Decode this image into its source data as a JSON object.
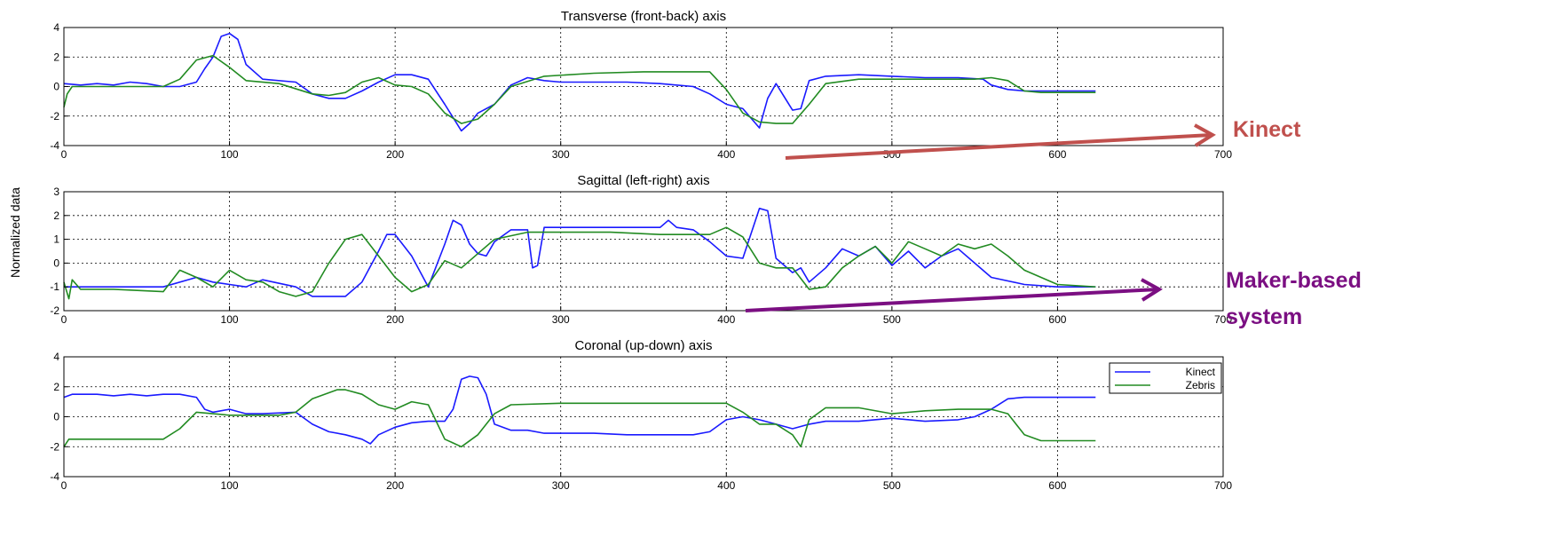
{
  "figure": {
    "ylabel": "Normalized data",
    "annotations": [
      {
        "text": "Kinect",
        "color": "#c0504d"
      },
      {
        "text": "Maker-based",
        "color": "#7b0f82"
      },
      {
        "text": "system",
        "color": "#7b0f82"
      }
    ],
    "legend": {
      "entries": [
        {
          "name": "Kinect",
          "color": "#1a1aff"
        },
        {
          "name": "Zebris",
          "color": "#228b22"
        }
      ],
      "placement": "top-right of third panel"
    }
  },
  "chart_data": [
    {
      "type": "line",
      "title": "Transverse (front-back) axis",
      "xlim": [
        0,
        700
      ],
      "ylim": [
        -4,
        4
      ],
      "xticks": [
        0,
        100,
        200,
        300,
        400,
        500,
        600,
        700
      ],
      "yticks": [
        -4,
        -2,
        0,
        2,
        4
      ],
      "grid": true,
      "series": [
        {
          "name": "Kinect",
          "color": "#1a1aff",
          "x": [
            0,
            10,
            20,
            30,
            40,
            50,
            60,
            70,
            80,
            85,
            90,
            95,
            100,
            105,
            110,
            120,
            140,
            150,
            160,
            170,
            180,
            190,
            200,
            210,
            220,
            230,
            240,
            245,
            250,
            260,
            270,
            280,
            290,
            300,
            320,
            340,
            360,
            380,
            390,
            400,
            410,
            420,
            425,
            430,
            440,
            445,
            450,
            460,
            480,
            500,
            520,
            540,
            555,
            560,
            570,
            580,
            590,
            600,
            623
          ],
          "y": [
            0.2,
            0.1,
            0.2,
            0.1,
            0.3,
            0.2,
            0.0,
            0.0,
            0.3,
            1.2,
            2.0,
            3.4,
            3.6,
            3.2,
            1.5,
            0.5,
            0.3,
            -0.5,
            -0.8,
            -0.8,
            -0.3,
            0.3,
            0.8,
            0.8,
            0.5,
            -1.2,
            -3.0,
            -2.5,
            -1.8,
            -1.2,
            0.1,
            0.6,
            0.4,
            0.3,
            0.3,
            0.3,
            0.2,
            0.0,
            -0.5,
            -1.2,
            -1.5,
            -2.8,
            -0.8,
            0.2,
            -1.6,
            -1.5,
            0.4,
            0.7,
            0.8,
            0.7,
            0.6,
            0.6,
            0.5,
            0.1,
            -0.2,
            -0.3,
            -0.3,
            -0.3,
            -0.3
          ]
        },
        {
          "name": "Zebris",
          "color": "#228b22",
          "x": [
            0,
            2,
            5,
            10,
            30,
            60,
            70,
            80,
            90,
            100,
            110,
            130,
            150,
            160,
            170,
            180,
            190,
            200,
            210,
            220,
            230,
            240,
            250,
            260,
            270,
            290,
            320,
            350,
            380,
            390,
            400,
            410,
            420,
            430,
            440,
            450,
            460,
            480,
            500,
            530,
            550,
            560,
            570,
            580,
            590,
            600,
            623
          ],
          "y": [
            -1.4,
            -0.5,
            0.0,
            0.0,
            0.0,
            0.0,
            0.5,
            1.8,
            2.1,
            1.3,
            0.4,
            0.2,
            -0.5,
            -0.6,
            -0.4,
            0.3,
            0.6,
            0.1,
            0.0,
            -0.5,
            -1.8,
            -2.5,
            -2.2,
            -1.2,
            0.0,
            0.7,
            0.9,
            1.0,
            1.0,
            1.0,
            -0.2,
            -1.8,
            -2.4,
            -2.5,
            -2.5,
            -1.2,
            0.2,
            0.5,
            0.5,
            0.5,
            0.5,
            0.6,
            0.4,
            -0.3,
            -0.4,
            -0.4,
            -0.4
          ]
        }
      ]
    },
    {
      "type": "line",
      "title": "Sagittal (left-right) axis",
      "xlim": [
        0,
        700
      ],
      "ylim": [
        -2,
        3
      ],
      "xticks": [
        0,
        100,
        200,
        300,
        400,
        500,
        600,
        700
      ],
      "yticks": [
        -2,
        -1,
        0,
        1,
        2,
        3
      ],
      "grid": true,
      "series": [
        {
          "name": "Kinect",
          "color": "#1a1aff",
          "x": [
            0,
            10,
            30,
            60,
            80,
            90,
            100,
            110,
            120,
            140,
            150,
            160,
            170,
            180,
            190,
            195,
            200,
            210,
            220,
            230,
            235,
            240,
            245,
            250,
            255,
            260,
            270,
            280,
            283,
            286,
            290,
            300,
            320,
            340,
            360,
            365,
            370,
            380,
            390,
            400,
            410,
            420,
            425,
            430,
            440,
            445,
            450,
            460,
            470,
            480,
            490,
            500,
            510,
            520,
            530,
            540,
            550,
            560,
            580,
            600,
            623
          ],
          "y": [
            -1.0,
            -1.0,
            -1.0,
            -1.0,
            -0.6,
            -0.8,
            -0.9,
            -1.0,
            -0.7,
            -1.0,
            -1.4,
            -1.4,
            -1.4,
            -0.8,
            0.5,
            1.2,
            1.2,
            0.3,
            -1.0,
            0.8,
            1.8,
            1.6,
            0.8,
            0.4,
            0.3,
            0.9,
            1.4,
            1.4,
            -0.2,
            -0.1,
            1.5,
            1.5,
            1.5,
            1.5,
            1.5,
            1.8,
            1.5,
            1.4,
            0.9,
            0.3,
            0.2,
            2.3,
            2.2,
            0.2,
            -0.4,
            -0.2,
            -0.8,
            -0.2,
            0.6,
            0.3,
            0.7,
            -0.1,
            0.5,
            -0.2,
            0.3,
            0.6,
            0.0,
            -0.6,
            -0.9,
            -1.0,
            -1.0
          ]
        },
        {
          "name": "Zebris",
          "color": "#228b22",
          "x": [
            0,
            3,
            5,
            10,
            30,
            60,
            70,
            80,
            90,
            100,
            110,
            120,
            130,
            140,
            150,
            160,
            170,
            180,
            190,
            200,
            210,
            220,
            230,
            240,
            250,
            260,
            280,
            300,
            330,
            360,
            390,
            400,
            410,
            420,
            430,
            440,
            450,
            460,
            470,
            480,
            490,
            500,
            510,
            520,
            530,
            540,
            550,
            560,
            570,
            580,
            600,
            623
          ],
          "y": [
            -0.8,
            -1.5,
            -0.7,
            -1.1,
            -1.1,
            -1.2,
            -0.3,
            -0.6,
            -1.0,
            -0.3,
            -0.7,
            -0.8,
            -1.2,
            -1.4,
            -1.2,
            0.0,
            1.0,
            1.2,
            0.3,
            -0.6,
            -1.2,
            -0.9,
            0.1,
            -0.2,
            0.4,
            1.0,
            1.3,
            1.3,
            1.3,
            1.2,
            1.2,
            1.5,
            1.1,
            0.0,
            -0.2,
            -0.2,
            -1.1,
            -1.0,
            -0.2,
            0.3,
            0.7,
            0.0,
            0.9,
            0.6,
            0.3,
            0.8,
            0.6,
            0.8,
            0.3,
            -0.3,
            -0.9,
            -1.0
          ]
        }
      ]
    },
    {
      "type": "line",
      "title": "Coronal (up-down) axis",
      "xlim": [
        0,
        700
      ],
      "ylim": [
        -4,
        4
      ],
      "xticks": [
        0,
        100,
        200,
        300,
        400,
        500,
        600,
        700
      ],
      "yticks": [
        -4,
        -2,
        0,
        2,
        4
      ],
      "grid": true,
      "series": [
        {
          "name": "Kinect",
          "color": "#1a1aff",
          "x": [
            0,
            5,
            10,
            20,
            30,
            40,
            50,
            60,
            70,
            80,
            85,
            90,
            100,
            110,
            120,
            140,
            150,
            160,
            170,
            180,
            185,
            190,
            200,
            210,
            220,
            230,
            235,
            240,
            245,
            250,
            255,
            260,
            270,
            280,
            290,
            300,
            320,
            340,
            360,
            380,
            390,
            400,
            410,
            420,
            430,
            440,
            450,
            460,
            480,
            500,
            520,
            540,
            550,
            560,
            570,
            580,
            590,
            600,
            623
          ],
          "y": [
            1.3,
            1.5,
            1.5,
            1.5,
            1.4,
            1.5,
            1.4,
            1.5,
            1.5,
            1.3,
            0.5,
            0.3,
            0.5,
            0.2,
            0.2,
            0.3,
            -0.5,
            -1.0,
            -1.2,
            -1.5,
            -1.8,
            -1.2,
            -0.7,
            -0.4,
            -0.3,
            -0.3,
            0.5,
            2.5,
            2.7,
            2.6,
            1.5,
            -0.5,
            -0.9,
            -0.9,
            -1.1,
            -1.1,
            -1.1,
            -1.2,
            -1.2,
            -1.2,
            -1.0,
            -0.2,
            0.0,
            -0.2,
            -0.5,
            -0.8,
            -0.5,
            -0.3,
            -0.3,
            -0.1,
            -0.3,
            -0.2,
            0.0,
            0.5,
            1.2,
            1.3,
            1.3,
            1.3,
            1.3
          ]
        },
        {
          "name": "Zebris",
          "color": "#228b22",
          "x": [
            0,
            3,
            5,
            10,
            40,
            60,
            70,
            80,
            90,
            100,
            110,
            130,
            140,
            150,
            160,
            165,
            170,
            180,
            190,
            200,
            210,
            220,
            230,
            240,
            250,
            260,
            270,
            300,
            350,
            400,
            410,
            420,
            430,
            440,
            445,
            450,
            460,
            480,
            500,
            520,
            540,
            550,
            560,
            570,
            580,
            590,
            600,
            623
          ],
          "y": [
            -2.0,
            -1.5,
            -1.5,
            -1.5,
            -1.5,
            -1.5,
            -0.8,
            0.3,
            0.2,
            0.1,
            0.1,
            0.1,
            0.3,
            1.2,
            1.6,
            1.8,
            1.8,
            1.5,
            0.8,
            0.5,
            1.0,
            0.8,
            -1.5,
            -2.0,
            -1.2,
            0.2,
            0.8,
            0.9,
            0.9,
            0.9,
            0.3,
            -0.5,
            -0.5,
            -1.2,
            -2.0,
            -0.2,
            0.6,
            0.6,
            0.2,
            0.4,
            0.5,
            0.5,
            0.5,
            0.2,
            -1.2,
            -1.6,
            -1.6,
            -1.6
          ]
        }
      ]
    }
  ]
}
